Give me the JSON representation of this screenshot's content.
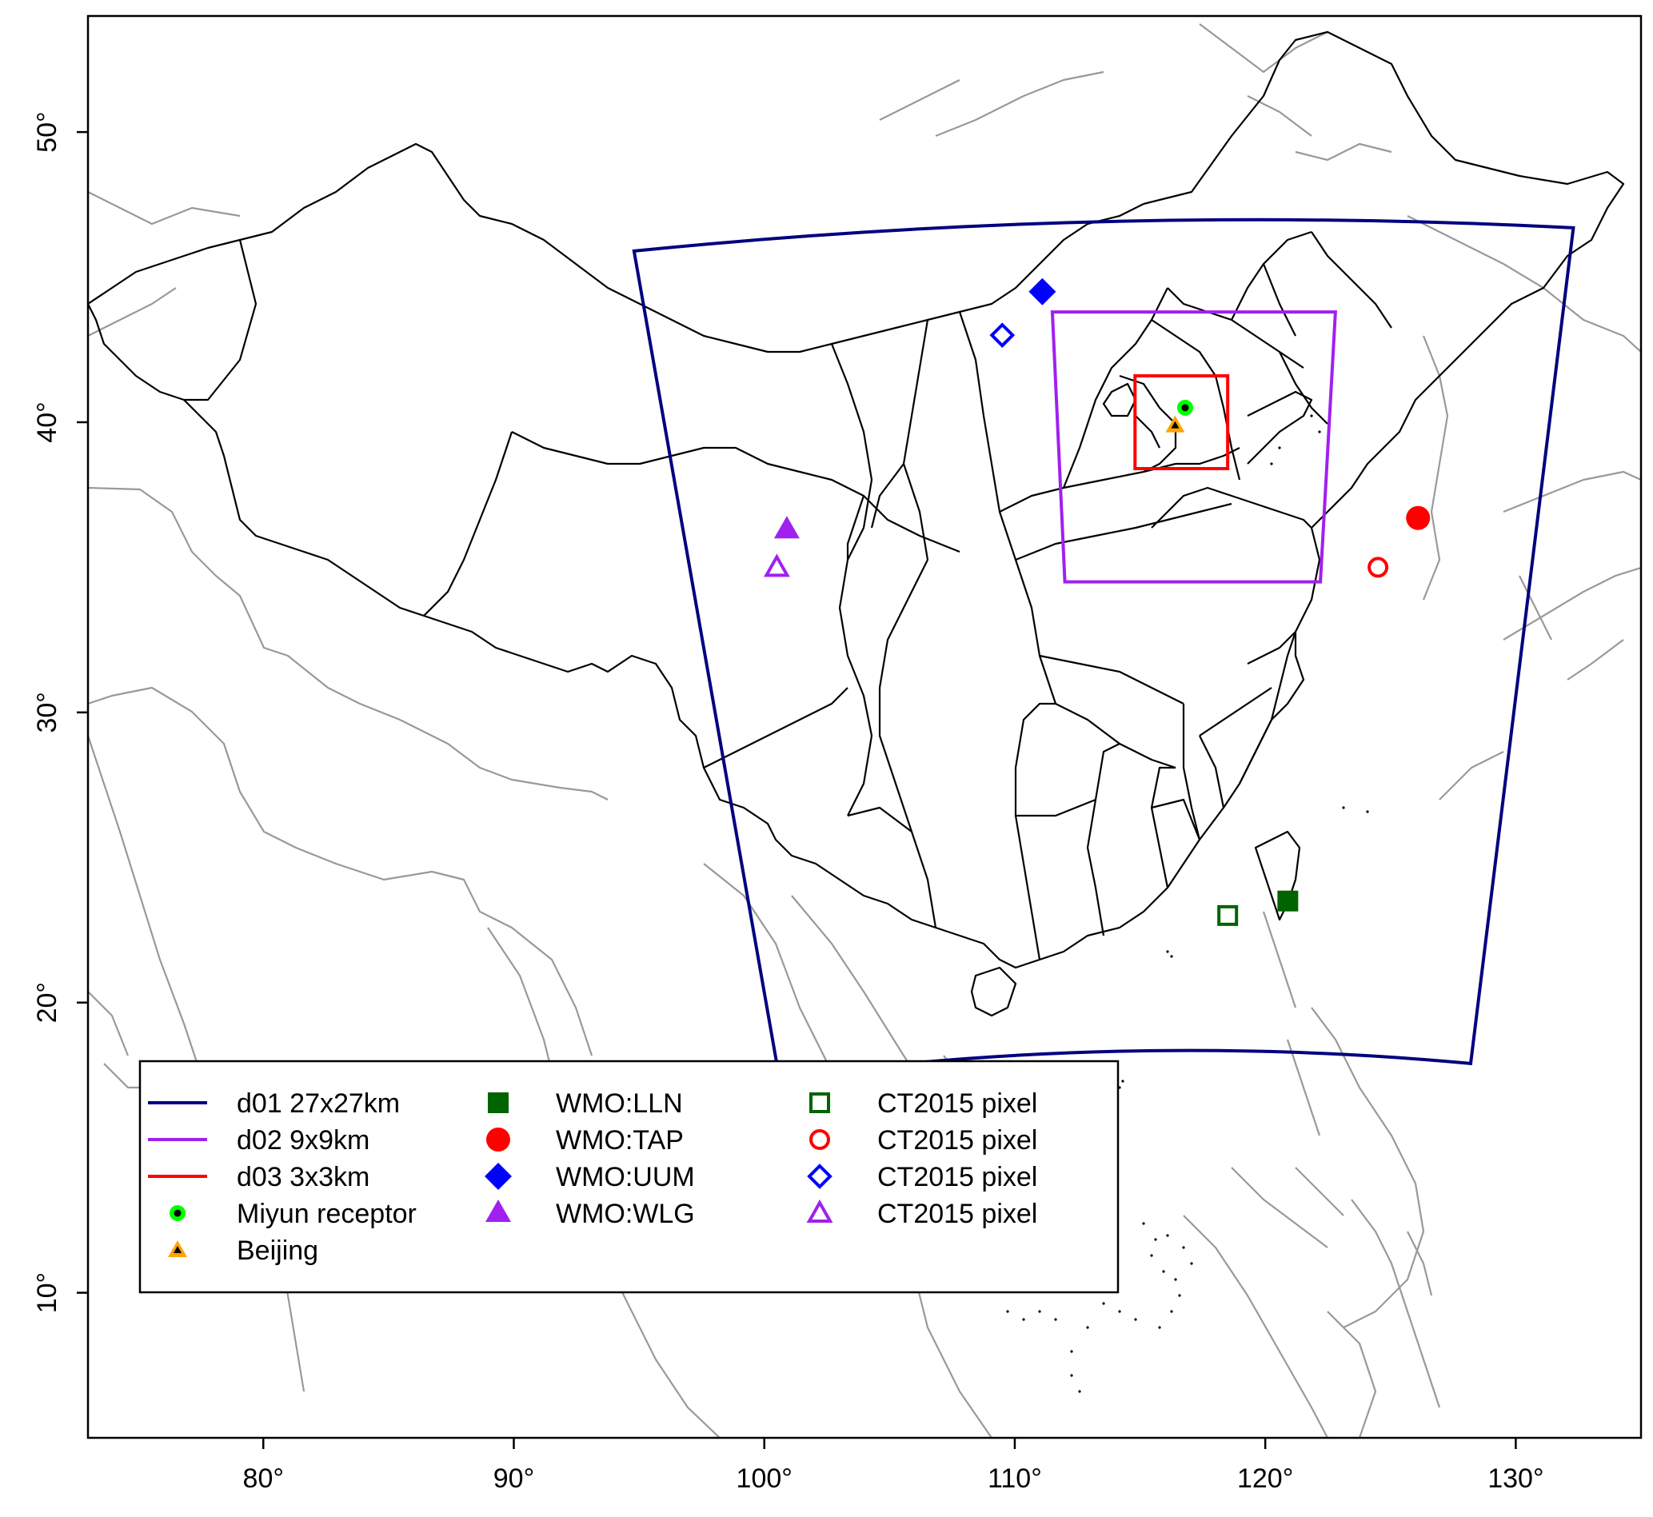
{
  "map": {
    "lon_range": [
      73,
      135
    ],
    "lat_range": [
      5,
      54
    ],
    "x_ticks": [
      {
        "value": 80,
        "label": "80°"
      },
      {
        "value": 90,
        "label": "90°"
      },
      {
        "value": 100,
        "label": "100°"
      },
      {
        "value": 110,
        "label": "110°"
      },
      {
        "value": 120,
        "label": "120°"
      },
      {
        "value": 130,
        "label": "130°"
      }
    ],
    "y_ticks": [
      {
        "value": 10,
        "label": "10°"
      },
      {
        "value": 20,
        "label": "20°"
      },
      {
        "value": 30,
        "label": "30°"
      },
      {
        "value": 40,
        "label": "40°"
      },
      {
        "value": 50,
        "label": "50°"
      }
    ],
    "colors": {
      "d01": "#00007f",
      "d02": "#a020f0",
      "d03": "#ff0000",
      "lln": "#006400",
      "tap": "#ff0000",
      "uum": "#0000ff",
      "wlg": "#a020f0",
      "miyun": "#00ff00",
      "beijing": "#ffa500",
      "country_border": "#000000",
      "background_coast": "#999999"
    }
  },
  "chart_data": {
    "type": "map",
    "domains": [
      {
        "id": "d01",
        "label": "d01 27x27km",
        "corners": [
          [
            94.8,
            45.9
          ],
          [
            132.3,
            46.7
          ],
          [
            128.2,
            17.9
          ],
          [
            100.6,
            17.4
          ]
        ]
      },
      {
        "id": "d02",
        "label": "d02 9x9km",
        "corners": [
          [
            111.5,
            43.8
          ],
          [
            122.8,
            43.8
          ],
          [
            122.2,
            34.5
          ],
          [
            112.0,
            34.5
          ]
        ]
      },
      {
        "id": "d03",
        "label": "d03 3x3km",
        "corners": [
          [
            114.8,
            41.6
          ],
          [
            118.5,
            41.6
          ],
          [
            118.5,
            38.4
          ],
          [
            114.8,
            38.4
          ]
        ]
      }
    ],
    "sites": [
      {
        "id": "miyun",
        "label": "Miyun receptor",
        "lon": 116.8,
        "lat": 40.5
      },
      {
        "id": "beijing",
        "label": "Beijing",
        "lon": 116.4,
        "lat": 39.9
      },
      {
        "id": "lln",
        "label": "WMO:LLN",
        "lon": 120.9,
        "lat": 23.5
      },
      {
        "id": "tap",
        "label": "WMO:TAP",
        "lon": 126.1,
        "lat": 36.7
      },
      {
        "id": "uum",
        "label": "WMO:UUM",
        "lon": 111.1,
        "lat": 44.5
      },
      {
        "id": "wlg",
        "label": "WMO:WLG",
        "lon": 100.9,
        "lat": 36.3
      }
    ],
    "ct2015_pixels": [
      {
        "id": "lln_pixel",
        "label": "CT2015 pixel",
        "lon": 118.5,
        "lat": 23.0
      },
      {
        "id": "tap_pixel",
        "label": "CT2015 pixel",
        "lon": 124.5,
        "lat": 35.0
      },
      {
        "id": "uum_pixel",
        "label": "CT2015 pixel",
        "lon": 109.5,
        "lat": 43.0
      },
      {
        "id": "wlg_pixel",
        "label": "CT2015 pixel",
        "lon": 100.5,
        "lat": 35.0
      }
    ]
  },
  "legend": {
    "col1": [
      {
        "label": "d01 27x27km",
        "symbol": "line-d01"
      },
      {
        "label": "d02 9x9km",
        "symbol": "line-d02"
      },
      {
        "label": "d03 3x3km",
        "symbol": "line-d03"
      },
      {
        "label": "Miyun receptor",
        "symbol": "dot-miyun"
      },
      {
        "label": "Beijing",
        "symbol": "tri-beijing"
      }
    ],
    "col2": [
      {
        "label": "WMO:LLN",
        "symbol": "square-filled"
      },
      {
        "label": "WMO:TAP",
        "symbol": "circle-filled"
      },
      {
        "label": "WMO:UUM",
        "symbol": "diamond-filled"
      },
      {
        "label": "WMO:WLG",
        "symbol": "triangle-filled"
      }
    ],
    "col3": [
      {
        "label": "CT2015 pixel",
        "symbol": "square-open"
      },
      {
        "label": "CT2015 pixel",
        "symbol": "circle-open"
      },
      {
        "label": "CT2015 pixel",
        "symbol": "diamond-open"
      },
      {
        "label": "CT2015 pixel",
        "symbol": "triangle-open"
      }
    ]
  }
}
